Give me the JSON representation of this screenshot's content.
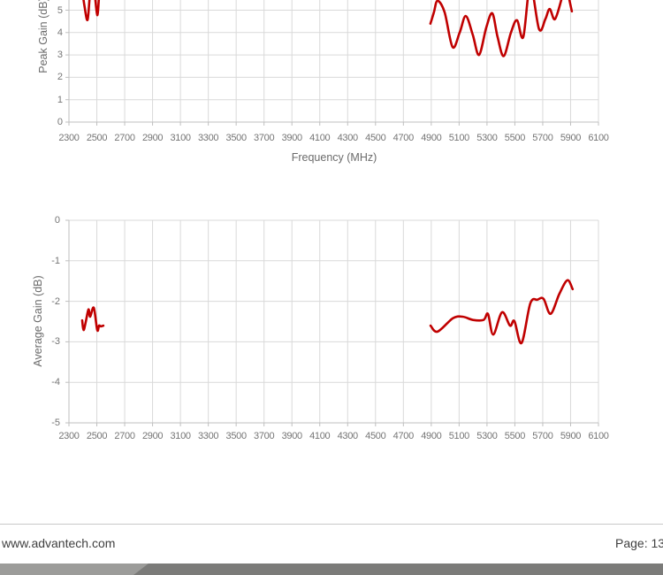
{
  "footer": {
    "website": "www.advantech.com",
    "page_label": "Page: 13"
  },
  "colors": {
    "curve": "#c00000",
    "gridline": "#d9d9d9",
    "axis_line": "#bfbfbf",
    "tick_text": "#757575",
    "footer_text": "#3f3f3f",
    "footer_rule": "#c9c9c9",
    "bar_left": "#9c9c9a",
    "bar_right": "#7b7b79",
    "background": "#ffffff"
  },
  "chart_data": [
    {
      "type": "line",
      "title": "",
      "xlabel": "Frequency (MHz)",
      "ylabel": "Peak Gain (dB)",
      "xlim": [
        2300,
        6100
      ],
      "ylim_visible": [
        0,
        5.5
      ],
      "axis_cropped_top": true,
      "grid": true,
      "legend": "none",
      "x_ticks": [
        2300,
        2500,
        2700,
        2900,
        3100,
        3300,
        3500,
        3700,
        3900,
        4100,
        4300,
        4500,
        4700,
        4900,
        5100,
        5300,
        5500,
        5700,
        5900,
        6100
      ],
      "y_ticks": [
        5,
        4,
        3,
        2,
        1,
        0
      ],
      "series": [
        {
          "name": "Peak Gain (dB)",
          "color": "#c00000",
          "segments": [
            [
              [
                2389,
                6.2
              ],
              [
                2411,
                5.2
              ],
              [
                2433,
                4.56
              ],
              [
                2449,
                5.6
              ],
              [
                2465,
                6.6
              ],
              [
                2484,
                5.8
              ],
              [
                2503,
                4.78
              ],
              [
                2516,
                5.6
              ],
              [
                2525,
                6.4
              ]
            ],
            [
              [
                4894,
                4.4
              ],
              [
                4919,
                4.9
              ],
              [
                4945,
                5.42
              ],
              [
                4996,
                4.9
              ],
              [
                5053,
                3.35
              ],
              [
                5104,
                4.0
              ],
              [
                5148,
                4.74
              ],
              [
                5198,
                3.9
              ],
              [
                5243,
                3.0
              ],
              [
                5294,
                4.2
              ],
              [
                5338,
                4.86
              ],
              [
                5376,
                3.8
              ],
              [
                5420,
                2.95
              ],
              [
                5472,
                4.0
              ],
              [
                5515,
                4.55
              ],
              [
                5560,
                3.8
              ],
              [
                5611,
                6.1
              ],
              [
                5674,
                4.15
              ],
              [
                5719,
                4.6
              ],
              [
                5750,
                5.05
              ],
              [
                5788,
                4.6
              ],
              [
                5840,
                5.6
              ],
              [
                5864,
                6.1
              ],
              [
                5909,
                4.95
              ]
            ]
          ]
        }
      ]
    },
    {
      "type": "line",
      "title": "",
      "xlabel": "",
      "ylabel": "Average Gain (dB)",
      "xlim": [
        2300,
        6100
      ],
      "ylim_visible": [
        -5,
        0
      ],
      "grid": true,
      "legend": "none",
      "x_ticks": [
        2300,
        2500,
        2700,
        2900,
        3100,
        3300,
        3500,
        3700,
        3900,
        4100,
        4300,
        4500,
        4700,
        4900,
        5100,
        5300,
        5500,
        5700,
        5900,
        6100
      ],
      "y_ticks": [
        0,
        -1,
        -2,
        -3,
        -4,
        -5
      ],
      "series": [
        {
          "name": "Average Gain (dB)",
          "color": "#c00000",
          "segments": [
            [
              [
                2395,
                -2.47
              ],
              [
                2405,
                -2.71
              ],
              [
                2421,
                -2.5
              ],
              [
                2440,
                -2.2
              ],
              [
                2452,
                -2.38
              ],
              [
                2478,
                -2.16
              ],
              [
                2503,
                -2.71
              ],
              [
                2516,
                -2.6
              ],
              [
                2528,
                -2.62
              ],
              [
                2547,
                -2.6
              ]
            ],
            [
              [
                4895,
                -2.6
              ],
              [
                4945,
                -2.75
              ],
              [
                5055,
                -2.42
              ],
              [
                5125,
                -2.38
              ],
              [
                5200,
                -2.46
              ],
              [
                5275,
                -2.46
              ],
              [
                5307,
                -2.31
              ],
              [
                5345,
                -2.82
              ],
              [
                5408,
                -2.27
              ],
              [
                5465,
                -2.6
              ],
              [
                5497,
                -2.49
              ],
              [
                5548,
                -3.03
              ],
              [
                5611,
                -2.05
              ],
              [
                5662,
                -1.96
              ],
              [
                5706,
                -1.94
              ],
              [
                5757,
                -2.31
              ],
              [
                5820,
                -1.81
              ],
              [
                5877,
                -1.48
              ],
              [
                5915,
                -1.7
              ]
            ]
          ]
        }
      ]
    }
  ]
}
